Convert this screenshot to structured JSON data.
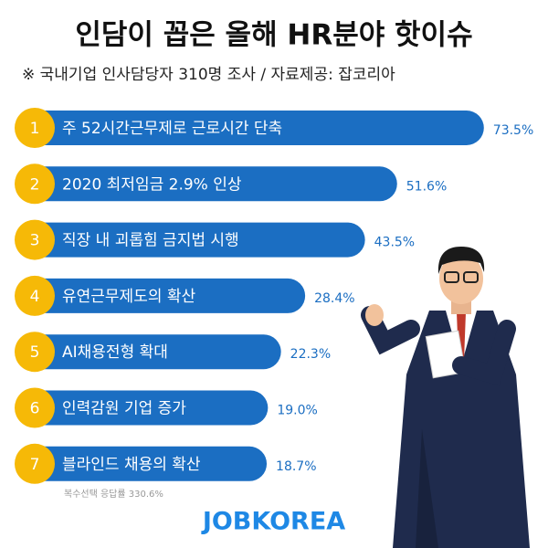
{
  "chart_data": {
    "type": "bar",
    "orientation": "horizontal",
    "title": "인담이 꼽은 올해 HR분야 핫이슈",
    "subtitle": "※ 국내기업 인사담당자 310명 조사 / 자료제공: 잡코리아",
    "ranks": [
      "1",
      "2",
      "3",
      "4",
      "5",
      "6",
      "7"
    ],
    "categories": [
      "주 52시간근무제로 근로시간 단축",
      "2020 최저임금 2.9% 인상",
      "직장 내 괴롭힘 금지법 시행",
      "유연근무제도의 확산",
      "AI채용전형 확대",
      "인력감원 기업 증가",
      "블라인드 채용의 확산"
    ],
    "values": [
      73.5,
      51.6,
      43.5,
      28.4,
      22.3,
      19.0,
      18.7
    ],
    "value_labels": [
      "73.5%",
      "51.6%",
      "43.5%",
      "28.4%",
      "22.3%",
      "19.0%",
      "18.7%"
    ],
    "color": "#1b6ec2",
    "rank_color": "#f6b907",
    "xlim": [
      -44,
      80
    ],
    "footnote": "복수선택 응답률 330.6%",
    "logo": "JOBKOREA"
  }
}
